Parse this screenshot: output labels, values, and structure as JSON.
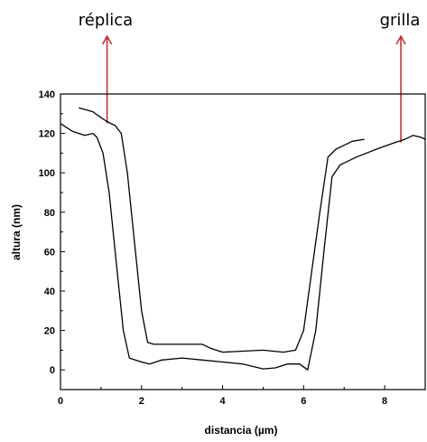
{
  "chart_data": {
    "type": "line",
    "xlabel": "distancia (µm)",
    "ylabel": "altura (nm)",
    "xlim": [
      0,
      9
    ],
    "ylim": [
      -10,
      140
    ],
    "xticks": [
      "0",
      "2",
      "4",
      "6",
      "8"
    ],
    "yticks": [
      "0",
      "20",
      "40",
      "60",
      "80",
      "100",
      "120",
      "140"
    ],
    "grid": false,
    "annotations": [
      {
        "text": "réplica",
        "points_to_series": "réplica",
        "x": 1.15
      },
      {
        "text": "grilla",
        "points_to_series": "grilla",
        "x": 8.4
      }
    ],
    "series": [
      {
        "id": "réplica",
        "values": [
          [
            0.45,
            133
          ],
          [
            0.8,
            131
          ],
          [
            1.0,
            128
          ],
          [
            1.15,
            126
          ],
          [
            1.35,
            124
          ],
          [
            1.5,
            120
          ],
          [
            1.65,
            100
          ],
          [
            1.8,
            70
          ],
          [
            1.9,
            50
          ],
          [
            2.0,
            30
          ],
          [
            2.15,
            14
          ],
          [
            2.3,
            13
          ],
          [
            2.6,
            13
          ],
          [
            3.0,
            13
          ],
          [
            3.5,
            13
          ],
          [
            3.7,
            11
          ],
          [
            4.0,
            9
          ],
          [
            4.5,
            9.5
          ],
          [
            5.0,
            10
          ],
          [
            5.5,
            9
          ],
          [
            5.8,
            10
          ],
          [
            6.0,
            20
          ],
          [
            6.2,
            50
          ],
          [
            6.4,
            80
          ],
          [
            6.6,
            108
          ],
          [
            6.8,
            112
          ],
          [
            7.0,
            114
          ],
          [
            7.2,
            116
          ],
          [
            7.5,
            117
          ]
        ]
      },
      {
        "id": "grilla",
        "values": [
          [
            0.0,
            125
          ],
          [
            0.3,
            121
          ],
          [
            0.6,
            119
          ],
          [
            0.8,
            120
          ],
          [
            0.9,
            118
          ],
          [
            1.05,
            110
          ],
          [
            1.2,
            90
          ],
          [
            1.4,
            50
          ],
          [
            1.55,
            20
          ],
          [
            1.7,
            6
          ],
          [
            2.0,
            4
          ],
          [
            2.2,
            3
          ],
          [
            2.5,
            5
          ],
          [
            3.0,
            6
          ],
          [
            3.5,
            5
          ],
          [
            4.0,
            4
          ],
          [
            4.5,
            3
          ],
          [
            5.0,
            0.5
          ],
          [
            5.3,
            1
          ],
          [
            5.6,
            3
          ],
          [
            5.9,
            3
          ],
          [
            6.1,
            0
          ],
          [
            6.3,
            20
          ],
          [
            6.5,
            60
          ],
          [
            6.7,
            98
          ],
          [
            6.9,
            104
          ],
          [
            7.3,
            108
          ],
          [
            7.8,
            112
          ],
          [
            8.2,
            115
          ],
          [
            8.5,
            117
          ],
          [
            8.7,
            119
          ],
          [
            8.9,
            118
          ],
          [
            9.0,
            117
          ]
        ]
      }
    ]
  }
}
